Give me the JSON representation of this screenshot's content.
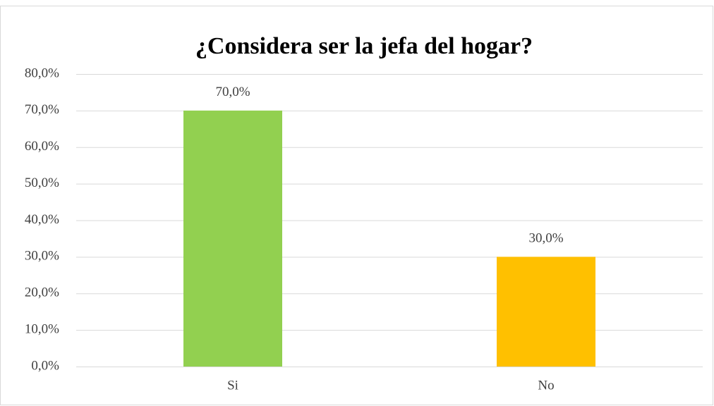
{
  "chart_data": {
    "type": "bar",
    "title": "¿Considera ser la jefa del hogar?",
    "categories": [
      "Si",
      "No"
    ],
    "values": [
      70,
      30
    ],
    "value_labels": [
      "70,0%",
      "30,0%"
    ],
    "colors": [
      "#92d050",
      "#ffc000"
    ],
    "ylim": [
      0,
      80
    ],
    "yticks": [
      {
        "value": 0,
        "label": "0,0%"
      },
      {
        "value": 10,
        "label": "10,0%"
      },
      {
        "value": 20,
        "label": "20,0%"
      },
      {
        "value": 30,
        "label": "30,0%"
      },
      {
        "value": 40,
        "label": "40,0%"
      },
      {
        "value": 50,
        "label": "50,0%"
      },
      {
        "value": 60,
        "label": "60,0%"
      },
      {
        "value": 70,
        "label": "70,0%"
      },
      {
        "value": 80,
        "label": "80,0%"
      }
    ],
    "grid": true
  }
}
